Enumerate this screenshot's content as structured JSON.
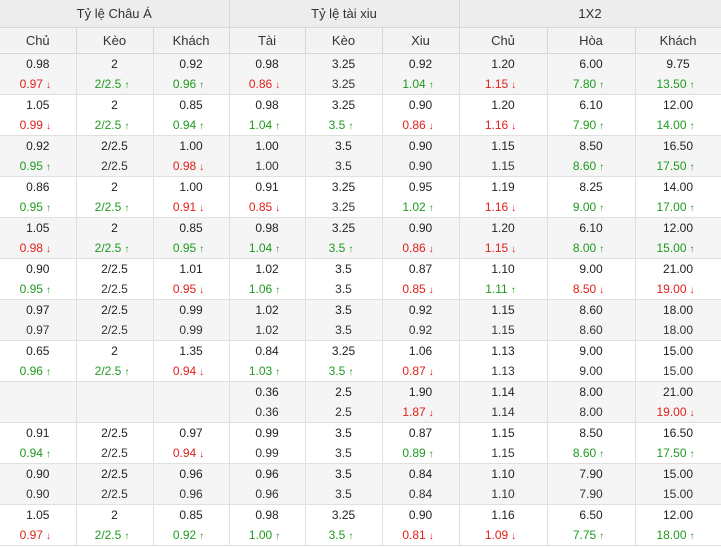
{
  "colors": {
    "up": "#1e9b1e",
    "down": "#e0201a",
    "neutral": "#333333"
  },
  "icons": {
    "up": "arrow-up-icon",
    "down": "arrow-down-icon"
  },
  "headers": {
    "groups": [
      "Tỷ lệ Châu Á",
      "Tỷ lệ tài xiu",
      "1X2"
    ],
    "columns": [
      "Chủ",
      "Kèo",
      "Khách",
      "Tài",
      "Kèo",
      "Xiu",
      "Chủ",
      "Hòa",
      "Khách"
    ]
  },
  "rows": [
    {
      "cells": [
        {
          "a": "0.98",
          "b": "0.97",
          "t": "down"
        },
        {
          "a": "2",
          "b": "2/2.5",
          "t": "up"
        },
        {
          "a": "0.92",
          "b": "0.96",
          "t": "up"
        },
        {
          "a": "0.98",
          "b": "0.86",
          "t": "down"
        },
        {
          "a": "3.25",
          "b": "3.25",
          "t": "same"
        },
        {
          "a": "0.92",
          "b": "1.04",
          "t": "up"
        },
        {
          "a": "1.20",
          "b": "1.15",
          "t": "down"
        },
        {
          "a": "6.00",
          "b": "7.80",
          "t": "up"
        },
        {
          "a": "9.75",
          "b": "13.50",
          "t": "up"
        }
      ]
    },
    {
      "cells": [
        {
          "a": "1.05",
          "b": "0.99",
          "t": "down"
        },
        {
          "a": "2",
          "b": "2/2.5",
          "t": "up"
        },
        {
          "a": "0.85",
          "b": "0.94",
          "t": "up"
        },
        {
          "a": "0.98",
          "b": "1.04",
          "t": "up"
        },
        {
          "a": "3.25",
          "b": "3.5",
          "t": "up"
        },
        {
          "a": "0.90",
          "b": "0.86",
          "t": "down"
        },
        {
          "a": "1.20",
          "b": "1.16",
          "t": "down"
        },
        {
          "a": "6.10",
          "b": "7.90",
          "t": "up"
        },
        {
          "a": "12.00",
          "b": "14.00",
          "t": "up"
        }
      ]
    },
    {
      "cells": [
        {
          "a": "0.92",
          "b": "0.95",
          "t": "up"
        },
        {
          "a": "2/2.5",
          "b": "2/2.5",
          "t": "same"
        },
        {
          "a": "1.00",
          "b": "0.98",
          "t": "down"
        },
        {
          "a": "1.00",
          "b": "1.00",
          "t": "same"
        },
        {
          "a": "3.5",
          "b": "3.5",
          "t": "same"
        },
        {
          "a": "0.90",
          "b": "0.90",
          "t": "same"
        },
        {
          "a": "1.15",
          "b": "1.15",
          "t": "same"
        },
        {
          "a": "8.50",
          "b": "8.60",
          "t": "up"
        },
        {
          "a": "16.50",
          "b": "17.50",
          "t": "up"
        }
      ]
    },
    {
      "cells": [
        {
          "a": "0.86",
          "b": "0.95",
          "t": "up"
        },
        {
          "a": "2",
          "b": "2/2.5",
          "t": "up"
        },
        {
          "a": "1.00",
          "b": "0.91",
          "t": "down"
        },
        {
          "a": "0.91",
          "b": "0.85",
          "t": "down"
        },
        {
          "a": "3.25",
          "b": "3.25",
          "t": "same"
        },
        {
          "a": "0.95",
          "b": "1.02",
          "t": "up"
        },
        {
          "a": "1.19",
          "b": "1.16",
          "t": "down"
        },
        {
          "a": "8.25",
          "b": "9.00",
          "t": "up"
        },
        {
          "a": "14.00",
          "b": "17.00",
          "t": "up"
        }
      ]
    },
    {
      "cells": [
        {
          "a": "1.05",
          "b": "0.98",
          "t": "down"
        },
        {
          "a": "2",
          "b": "2/2.5",
          "t": "up"
        },
        {
          "a": "0.85",
          "b": "0.95",
          "t": "up"
        },
        {
          "a": "0.98",
          "b": "1.04",
          "t": "up"
        },
        {
          "a": "3.25",
          "b": "3.5",
          "t": "up"
        },
        {
          "a": "0.90",
          "b": "0.86",
          "t": "down"
        },
        {
          "a": "1.20",
          "b": "1.15",
          "t": "down"
        },
        {
          "a": "6.10",
          "b": "8.00",
          "t": "up"
        },
        {
          "a": "12.00",
          "b": "15.00",
          "t": "up"
        }
      ]
    },
    {
      "cells": [
        {
          "a": "0.90",
          "b": "0.95",
          "t": "up"
        },
        {
          "a": "2/2.5",
          "b": "2/2.5",
          "t": "same"
        },
        {
          "a": "1.01",
          "b": "0.95",
          "t": "down"
        },
        {
          "a": "1.02",
          "b": "1.06",
          "t": "up"
        },
        {
          "a": "3.5",
          "b": "3.5",
          "t": "same"
        },
        {
          "a": "0.87",
          "b": "0.85",
          "t": "down"
        },
        {
          "a": "1.10",
          "b": "1.11",
          "t": "up"
        },
        {
          "a": "9.00",
          "b": "8.50",
          "t": "down"
        },
        {
          "a": "21.00",
          "b": "19.00",
          "t": "down"
        }
      ]
    },
    {
      "cells": [
        {
          "a": "0.97",
          "b": "0.97",
          "t": "same"
        },
        {
          "a": "2/2.5",
          "b": "2/2.5",
          "t": "same"
        },
        {
          "a": "0.99",
          "b": "0.99",
          "t": "same"
        },
        {
          "a": "1.02",
          "b": "1.02",
          "t": "same"
        },
        {
          "a": "3.5",
          "b": "3.5",
          "t": "same"
        },
        {
          "a": "0.92",
          "b": "0.92",
          "t": "same"
        },
        {
          "a": "1.15",
          "b": "1.15",
          "t": "same"
        },
        {
          "a": "8.60",
          "b": "8.60",
          "t": "same"
        },
        {
          "a": "18.00",
          "b": "18.00",
          "t": "same"
        }
      ]
    },
    {
      "cells": [
        {
          "a": "0.65",
          "b": "0.96",
          "t": "up"
        },
        {
          "a": "2",
          "b": "2/2.5",
          "t": "up"
        },
        {
          "a": "1.35",
          "b": "0.94",
          "t": "down"
        },
        {
          "a": "0.84",
          "b": "1.03",
          "t": "up"
        },
        {
          "a": "3.25",
          "b": "3.5",
          "t": "up"
        },
        {
          "a": "1.06",
          "b": "0.87",
          "t": "down"
        },
        {
          "a": "1.13",
          "b": "1.13",
          "t": "same"
        },
        {
          "a": "9.00",
          "b": "9.00",
          "t": "same"
        },
        {
          "a": "15.00",
          "b": "15.00",
          "t": "same"
        }
      ]
    },
    {
      "cells": [
        {
          "a": "",
          "b": "",
          "t": "same"
        },
        {
          "a": "",
          "b": "",
          "t": "same"
        },
        {
          "a": "",
          "b": "",
          "t": "same"
        },
        {
          "a": "0.36",
          "b": "0.36",
          "t": "same"
        },
        {
          "a": "2.5",
          "b": "2.5",
          "t": "same"
        },
        {
          "a": "1.90",
          "b": "1.87",
          "t": "down"
        },
        {
          "a": "1.14",
          "b": "1.14",
          "t": "same"
        },
        {
          "a": "8.00",
          "b": "8.00",
          "t": "same"
        },
        {
          "a": "21.00",
          "b": "19.00",
          "t": "down"
        }
      ]
    },
    {
      "cells": [
        {
          "a": "0.91",
          "b": "0.94",
          "t": "up"
        },
        {
          "a": "2/2.5",
          "b": "2/2.5",
          "t": "same"
        },
        {
          "a": "0.97",
          "b": "0.94",
          "t": "down"
        },
        {
          "a": "0.99",
          "b": "0.99",
          "t": "same"
        },
        {
          "a": "3.5",
          "b": "3.5",
          "t": "same"
        },
        {
          "a": "0.87",
          "b": "0.89",
          "t": "up"
        },
        {
          "a": "1.15",
          "b": "1.15",
          "t": "same"
        },
        {
          "a": "8.50",
          "b": "8.60",
          "t": "up"
        },
        {
          "a": "16.50",
          "b": "17.50",
          "t": "up"
        }
      ]
    },
    {
      "cells": [
        {
          "a": "0.90",
          "b": "0.90",
          "t": "same"
        },
        {
          "a": "2/2.5",
          "b": "2/2.5",
          "t": "same"
        },
        {
          "a": "0.96",
          "b": "0.96",
          "t": "same"
        },
        {
          "a": "0.96",
          "b": "0.96",
          "t": "same"
        },
        {
          "a": "3.5",
          "b": "3.5",
          "t": "same"
        },
        {
          "a": "0.84",
          "b": "0.84",
          "t": "same"
        },
        {
          "a": "1.10",
          "b": "1.10",
          "t": "same"
        },
        {
          "a": "7.90",
          "b": "7.90",
          "t": "same"
        },
        {
          "a": "15.00",
          "b": "15.00",
          "t": "same"
        }
      ]
    },
    {
      "cells": [
        {
          "a": "1.05",
          "b": "0.97",
          "t": "down"
        },
        {
          "a": "2",
          "b": "2/2.5",
          "t": "up"
        },
        {
          "a": "0.85",
          "b": "0.92",
          "t": "up"
        },
        {
          "a": "0.98",
          "b": "1.00",
          "t": "up"
        },
        {
          "a": "3.25",
          "b": "3.5",
          "t": "up"
        },
        {
          "a": "0.90",
          "b": "0.81",
          "t": "down"
        },
        {
          "a": "1.16",
          "b": "1.09",
          "t": "down"
        },
        {
          "a": "6.50",
          "b": "7.75",
          "t": "up"
        },
        {
          "a": "12.00",
          "b": "18.00",
          "t": "up"
        }
      ]
    }
  ]
}
